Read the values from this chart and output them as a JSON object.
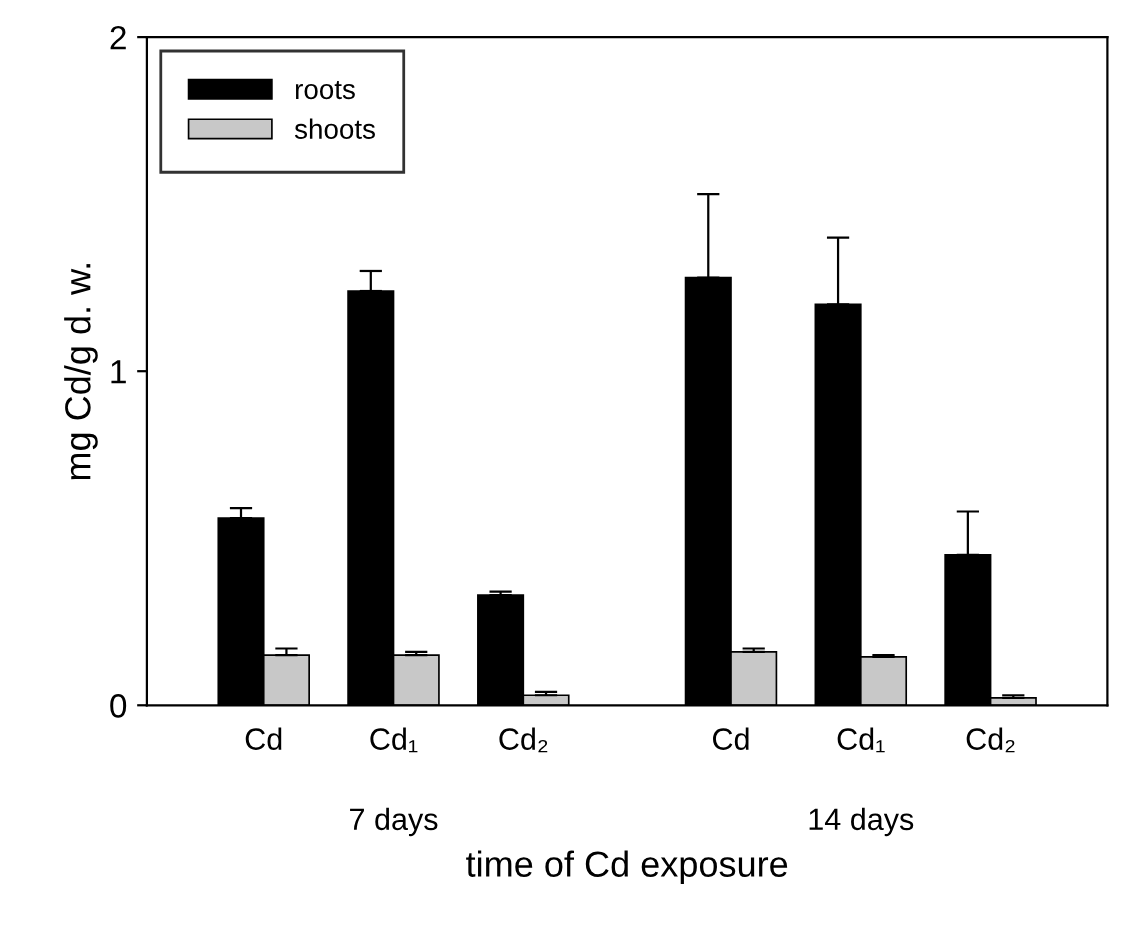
{
  "chart_data": {
    "type": "bar",
    "xlabel": "time of Cd exposure",
    "ylabel": "mg Cd/g d. w.",
    "categories": [
      "Cd",
      "Cd₁",
      "Cd₂",
      "Cd",
      "Cd₁",
      "Cd₂"
    ],
    "series": [
      {
        "name": "roots",
        "color": "#000000",
        "values": [
          0.56,
          1.24,
          0.33,
          1.28,
          1.2,
          0.45
        ],
        "errors": [
          [
            0.56,
            0.59
          ],
          [
            1.24,
            1.3
          ],
          [
            0.33,
            0.34
          ],
          [
            1.28,
            1.53
          ],
          [
            1.2,
            1.4
          ],
          [
            0.45,
            0.58
          ]
        ]
      },
      {
        "name": "shoots",
        "color": "#c8c8c8",
        "values": [
          0.15,
          0.15,
          0.03,
          0.16,
          0.145,
          0.022
        ],
        "errors": [
          [
            0.15,
            0.17
          ],
          [
            0.15,
            0.16
          ],
          [
            0.03,
            0.04
          ],
          [
            0.16,
            0.17
          ],
          [
            0.145,
            0.15
          ],
          [
            0.022,
            0.03
          ]
        ]
      }
    ],
    "annotations": [
      "7 days",
      "14 days"
    ],
    "ylim": [
      0,
      2
    ],
    "yticks": [
      0,
      1,
      2
    ],
    "grid": false,
    "legend": "top left"
  }
}
